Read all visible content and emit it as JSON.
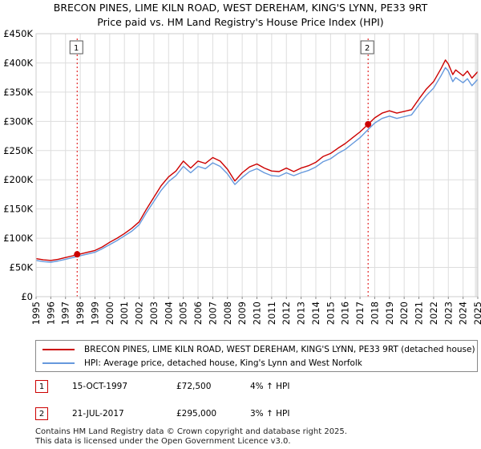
{
  "titles": {
    "line1": "BRECON PINES, LIME KILN ROAD, WEST DEREHAM, KING'S LYNN, PE33 9RT",
    "line2": "Price paid vs. HM Land Registry's House Price Index (HPI)"
  },
  "colors": {
    "property": "#cc0000",
    "hpi": "#6699dd",
    "future_shade": "#e8e8e8",
    "marker_line": "#dd0000"
  },
  "chart_data": {
    "type": "line",
    "xlim": [
      1995,
      2025
    ],
    "ylim": [
      0,
      450000
    ],
    "x_ticks": [
      "1995",
      "1996",
      "1997",
      "1998",
      "1999",
      "2000",
      "2001",
      "2002",
      "2003",
      "2004",
      "2005",
      "2006",
      "2007",
      "2008",
      "2009",
      "2010",
      "2011",
      "2012",
      "2013",
      "2014",
      "2015",
      "2016",
      "2017",
      "2018",
      "2019",
      "2020",
      "2021",
      "2022",
      "2023",
      "2024",
      "2025"
    ],
    "y_ticks": [
      {
        "value": 0,
        "label": "£0"
      },
      {
        "value": 50000,
        "label": "£50K"
      },
      {
        "value": 100000,
        "label": "£100K"
      },
      {
        "value": 150000,
        "label": "£150K"
      },
      {
        "value": 200000,
        "label": "£200K"
      },
      {
        "value": 250000,
        "label": "£250K"
      },
      {
        "value": 300000,
        "label": "£300K"
      },
      {
        "value": 350000,
        "label": "£350K"
      },
      {
        "value": 400000,
        "label": "£400K"
      },
      {
        "value": 450000,
        "label": "£450K"
      }
    ],
    "series": [
      {
        "name": "BRECON PINES, LIME KILN ROAD, WEST DEREHAM, KING'S LYNN, PE33 9RT (detached house)",
        "key": "property",
        "x": [
          1995.0,
          1995.5,
          1996.0,
          1996.5,
          1997.0,
          1997.5,
          1997.79,
          1998.0,
          1998.5,
          1999.0,
          1999.5,
          2000.0,
          2000.5,
          2001.0,
          2001.5,
          2002.0,
          2002.5,
          2003.0,
          2003.5,
          2004.0,
          2004.5,
          2005.0,
          2005.5,
          2006.0,
          2006.5,
          2007.0,
          2007.5,
          2008.0,
          2008.5,
          2009.0,
          2009.5,
          2010.0,
          2010.5,
          2011.0,
          2011.5,
          2012.0,
          2012.5,
          2013.0,
          2013.5,
          2014.0,
          2014.5,
          2015.0,
          2015.5,
          2016.0,
          2016.5,
          2017.0,
          2017.55,
          2018.0,
          2018.5,
          2019.0,
          2019.5,
          2020.0,
          2020.5,
          2021.0,
          2021.5,
          2022.0,
          2022.5,
          2022.8,
          2023.0,
          2023.3,
          2023.5,
          2024.0,
          2024.3,
          2024.6,
          2025.0
        ],
        "values": [
          65000,
          63000,
          62000,
          64000,
          67000,
          70000,
          72500,
          73000,
          76000,
          79000,
          85000,
          93000,
          100000,
          108000,
          117000,
          128000,
          150000,
          170000,
          190000,
          205000,
          215000,
          232000,
          220000,
          232000,
          228000,
          238000,
          232000,
          218000,
          198000,
          212000,
          222000,
          227000,
          220000,
          215000,
          214000,
          220000,
          214000,
          220000,
          224000,
          230000,
          240000,
          245000,
          254000,
          262000,
          272000,
          282000,
          295000,
          306000,
          314000,
          318000,
          314000,
          317000,
          320000,
          338000,
          355000,
          368000,
          390000,
          405000,
          398000,
          380000,
          388000,
          378000,
          386000,
          374000,
          385000
        ]
      },
      {
        "name": "HPI: Average price, detached house, King's Lynn and West Norfolk",
        "key": "hpi",
        "x": [
          1995.0,
          1995.5,
          1996.0,
          1996.5,
          1997.0,
          1997.5,
          1998.0,
          1998.5,
          1999.0,
          1999.5,
          2000.0,
          2000.5,
          2001.0,
          2001.5,
          2002.0,
          2002.5,
          2003.0,
          2003.5,
          2004.0,
          2004.5,
          2005.0,
          2005.5,
          2006.0,
          2006.5,
          2007.0,
          2007.5,
          2008.0,
          2008.5,
          2009.0,
          2009.5,
          2010.0,
          2010.5,
          2011.0,
          2011.5,
          2012.0,
          2012.5,
          2013.0,
          2013.5,
          2014.0,
          2014.5,
          2015.0,
          2015.5,
          2016.0,
          2016.5,
          2017.0,
          2017.55,
          2018.0,
          2018.5,
          2019.0,
          2019.5,
          2020.0,
          2020.5,
          2021.0,
          2021.5,
          2022.0,
          2022.5,
          2022.8,
          2023.0,
          2023.3,
          2023.5,
          2024.0,
          2024.3,
          2024.6,
          2025.0
        ],
        "values": [
          62000,
          60000,
          59000,
          61000,
          64000,
          67000,
          70000,
          73000,
          76000,
          82000,
          89000,
          96000,
          104000,
          112000,
          123000,
          144000,
          163000,
          182000,
          197000,
          207000,
          223000,
          212000,
          223000,
          219000,
          229000,
          223000,
          210000,
          192000,
          204000,
          214000,
          219000,
          212000,
          207000,
          206000,
          212000,
          207000,
          212000,
          216000,
          222000,
          231000,
          236000,
          245000,
          252000,
          262000,
          272000,
          286000,
          297000,
          305000,
          309000,
          305000,
          308000,
          311000,
          328000,
          344000,
          357000,
          378000,
          392000,
          386000,
          368000,
          375000,
          366000,
          373000,
          361000,
          372000
        ]
      }
    ],
    "sales": [
      {
        "label": "1",
        "x": 1997.79,
        "value": 72500
      },
      {
        "label": "2",
        "x": 2017.55,
        "value": 295000
      }
    ],
    "future_from": 2024.8
  },
  "legend": {
    "property_label": "BRECON PINES, LIME KILN ROAD, WEST DEREHAM, KING'S LYNN, PE33 9RT (detached house)",
    "hpi_label": "HPI: Average price, detached house, King's Lynn and West Norfolk"
  },
  "transactions": [
    {
      "num": "1",
      "date": "15-OCT-1997",
      "price": "£72,500",
      "hpi": "4% ↑ HPI"
    },
    {
      "num": "2",
      "date": "21-JUL-2017",
      "price": "£295,000",
      "hpi": "3% ↑ HPI"
    }
  ],
  "footer": {
    "line1": "Contains HM Land Registry data © Crown copyright and database right 2025.",
    "line2": "This data is licensed under the Open Government Licence v3.0."
  }
}
